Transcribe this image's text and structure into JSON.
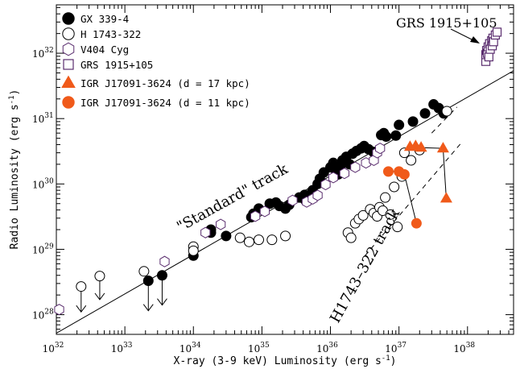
{
  "chart_data": {
    "type": "scatter",
    "xlabel": "X-ray (3-9 keV) Luminosity (erg s",
    "xlabel_sup": "-1",
    "xlabel_end": ")",
    "ylabel": "Radio Luminosity (erg s",
    "ylabel_sup": "-1",
    "ylabel_end": ")",
    "xscale": "log",
    "yscale": "log",
    "xlim": [
      1e+32,
      4.7e+38
    ],
    "ylim": [
      5e+27,
      5.5e+32
    ],
    "x_ticks": [
      {
        "value": 1e+32,
        "base": "10",
        "exp": "32"
      },
      {
        "value": 1e+33,
        "base": "10",
        "exp": "33"
      },
      {
        "value": 1e+34,
        "base": "10",
        "exp": "34"
      },
      {
        "value": 1e+35,
        "base": "10",
        "exp": "35"
      },
      {
        "value": 1e+36,
        "base": "10",
        "exp": "36"
      },
      {
        "value": 1e+37,
        "base": "10",
        "exp": "37"
      },
      {
        "value": 1e+38,
        "base": "10",
        "exp": "38"
      }
    ],
    "y_ticks": [
      {
        "value": 1e+28,
        "base": "10",
        "exp": "28"
      },
      {
        "value": 1e+29,
        "base": "10",
        "exp": "29"
      },
      {
        "value": 1e+30,
        "base": "10",
        "exp": "30"
      },
      {
        "value": 1e+31,
        "base": "10",
        "exp": "31"
      },
      {
        "value": 1e+32,
        "base": "10",
        "exp": "32"
      }
    ],
    "legend_position": "top-left",
    "colors": {
      "purple": "#5a2d6e",
      "orange": "#f05a1a",
      "black": "#000000"
    },
    "series": [
      {
        "name": "GX 339-4",
        "marker": "filled-circle",
        "color": "#000000",
        "points": [
          [
            2.2e+33,
            3.3e+28
          ],
          [
            3.5e+33,
            4e+28
          ],
          [
            1e+34,
            8e+28
          ],
          [
            1.8e+34,
            2e+29
          ],
          [
            1.8e+34,
            1.8e+29
          ],
          [
            3e+34,
            1.6e+29
          ],
          [
            7e+34,
            3.1e+29
          ],
          [
            7.5e+34,
            3.5e+29
          ],
          [
            9e+34,
            4.2e+29
          ],
          [
            1.3e+35,
            5e+29
          ],
          [
            1.6e+35,
            5.2e+29
          ],
          [
            1.8e+35,
            4.6e+29
          ],
          [
            2.2e+35,
            4.2e+29
          ],
          [
            2.5e+35,
            4.8e+29
          ],
          [
            3.5e+35,
            6.2e+29
          ],
          [
            4.2e+35,
            6.8e+29
          ],
          [
            4.2e+35,
            5.8e+29
          ],
          [
            5.5e+35,
            8e+29
          ],
          [
            6.5e+35,
            1e+30
          ],
          [
            7e+35,
            1.2e+30
          ],
          [
            8e+35,
            1.5e+30
          ],
          [
            1e+36,
            1.8e+30
          ],
          [
            1.1e+36,
            2.1e+30
          ],
          [
            1.2e+36,
            1.6e+30
          ],
          [
            1.3e+36,
            1.4e+30
          ],
          [
            1.4e+36,
            1.9e+30
          ],
          [
            1.5e+36,
            2.3e+30
          ],
          [
            1.7e+36,
            2.6e+30
          ],
          [
            1.9e+36,
            2e+30
          ],
          [
            2.1e+36,
            2.9e+30
          ],
          [
            2.4e+36,
            3.2e+30
          ],
          [
            2.8e+36,
            3.5e+30
          ],
          [
            3.1e+36,
            3.8e+30
          ],
          [
            3.6e+36,
            3.4e+30
          ],
          [
            4.2e+36,
            3.1e+30
          ],
          [
            5.5e+36,
            5.6e+30
          ],
          [
            6e+36,
            6e+30
          ],
          [
            6.5e+36,
            5.3e+30
          ],
          [
            9e+36,
            5.5e+30
          ],
          [
            1e+37,
            8e+30
          ],
          [
            1.6e+37,
            9e+30
          ],
          [
            2.4e+37,
            1.2e+31
          ],
          [
            3.2e+37,
            1.65e+31
          ],
          [
            3.8e+37,
            1.45e+31
          ],
          [
            4.5e+37,
            1.2e+31
          ]
        ]
      },
      {
        "name": "H 1743-322",
        "marker": "open-circle",
        "color": "#000000",
        "points": [
          [
            2.3e+32,
            2.7e+28
          ],
          [
            4.3e+32,
            3.9e+28
          ],
          [
            1.9e+33,
            4.6e+28
          ],
          [
            1e+34,
            1.1e+29
          ],
          [
            1e+34,
            9.5e+28
          ],
          [
            4.8e+34,
            1.5e+29
          ],
          [
            6.5e+34,
            1.3e+29
          ],
          [
            9e+34,
            1.4e+29
          ],
          [
            1.4e+35,
            1.4e+29
          ],
          [
            2.2e+35,
            1.6e+29
          ],
          [
            1.8e+36,
            1.8e+29
          ],
          [
            2e+36,
            1.5e+29
          ],
          [
            2.3e+36,
            2.5e+29
          ],
          [
            2.6e+36,
            2.9e+29
          ],
          [
            3e+36,
            3.3e+29
          ],
          [
            3.8e+36,
            4.1e+29
          ],
          [
            4.3e+36,
            3.6e+29
          ],
          [
            4.8e+36,
            3.2e+29
          ],
          [
            5.2e+36,
            4.4e+29
          ],
          [
            5.8e+36,
            3.9e+29
          ],
          [
            6.3e+36,
            6.2e+29
          ],
          [
            7.5e+36,
            3.4e+29
          ],
          [
            8.5e+36,
            9e+29
          ],
          [
            9.5e+36,
            2.2e+29
          ],
          [
            1.1e+37,
            1.3e+30
          ],
          [
            1.2e+37,
            3e+30
          ],
          [
            1.5e+37,
            2.3e+30
          ],
          [
            2e+37,
            3.3e+30
          ],
          [
            5e+37,
            1.3e+31
          ]
        ]
      },
      {
        "name": "V404 Cyg",
        "marker": "open-hexagon",
        "color": "#5a2d6e",
        "points": [
          [
            1.1e+32,
            1.2e+28
          ],
          [
            3.8e+33,
            6.5e+28
          ],
          [
            1.5e+34,
            1.8e+29
          ],
          [
            2.5e+34,
            2.4e+29
          ],
          [
            8e+34,
            3.2e+29
          ],
          [
            1.1e+35,
            3.8e+29
          ],
          [
            2.8e+35,
            5.6e+29
          ],
          [
            4.5e+35,
            5.3e+29
          ],
          [
            5.5e+35,
            5.9e+29
          ],
          [
            6.5e+35,
            6.7e+29
          ],
          [
            8.5e+35,
            9.8e+29
          ],
          [
            1.1e+36,
            1.25e+30
          ],
          [
            1.6e+36,
            1.45e+30
          ],
          [
            2.3e+36,
            1.8e+30
          ],
          [
            3.3e+36,
            2.1e+30
          ],
          [
            4.3e+36,
            2.3e+30
          ],
          [
            4.8e+36,
            3e+30
          ],
          [
            5.3e+36,
            3.5e+30
          ]
        ]
      },
      {
        "name": "GRS 1915+105",
        "marker": "open-square",
        "color": "#5a2d6e",
        "points": [
          [
            1.85e+38,
            7.5e+31
          ],
          [
            1.85e+38,
            9.5e+31
          ],
          [
            1.9e+38,
            1.1e+32
          ],
          [
            1.95e+38,
            1e+32
          ],
          [
            2e+38,
            1.25e+32
          ],
          [
            2.05e+38,
            8.8e+31
          ],
          [
            2.1e+38,
            1.4e+32
          ],
          [
            2.15e+38,
            1.15e+32
          ],
          [
            2.25e+38,
            1.55e+32
          ],
          [
            2.3e+38,
            1.3e+32
          ],
          [
            2.35e+38,
            1.7e+32
          ],
          [
            2.4e+38,
            1.5e+32
          ],
          [
            2.55e+38,
            1.9e+32
          ],
          [
            2.7e+38,
            2.1e+32
          ]
        ]
      },
      {
        "name": "IGR J17091-3624 (d = 17 kpc)",
        "marker": "filled-triangle",
        "color": "#f05a1a",
        "points": [
          [
            1.45e+37,
            3.7e+30
          ],
          [
            1.75e+37,
            3.8e+30
          ],
          [
            2.1e+37,
            3.6e+30
          ],
          [
            4.4e+37,
            3.5e+30
          ],
          [
            4.9e+37,
            6e+29
          ]
        ],
        "links": [
          [
            0,
            1
          ],
          [
            1,
            2
          ],
          [
            2,
            3
          ],
          [
            3,
            4
          ]
        ]
      },
      {
        "name": "IGR J17091-3624 (d = 11 kpc)",
        "marker": "filled-circle",
        "color": "#f05a1a",
        "points": [
          [
            7e+36,
            1.55e+30
          ],
          [
            1e+37,
            1.55e+30
          ],
          [
            1.2e+37,
            1.4e+30
          ],
          [
            1.8e+37,
            2.5e+29
          ]
        ],
        "links": [
          [
            0,
            1
          ],
          [
            1,
            2
          ],
          [
            2,
            3
          ]
        ]
      }
    ],
    "upper_limits": [
      {
        "marker": "open-circle",
        "point": [
          2.3e+32,
          2.7e+28
        ],
        "to": 1.1e+28
      },
      {
        "marker": "open-circle",
        "point": [
          4.3e+32,
          3.9e+28
        ],
        "to": 1.7e+28
      },
      {
        "marker": "filled-circle",
        "point": [
          2.2e+33,
          3.3e+28
        ],
        "to": 1.15e+28
      },
      {
        "marker": "filled-circle",
        "point": [
          3.5e+33,
          4e+28
        ],
        "to": 1.4e+28
      }
    ],
    "fit_lines": [
      {
        "style": "solid",
        "from": [
          1e+32,
          5.2e+27
        ],
        "to": [
          4.7e+38,
          5.4e+31
        ]
      },
      {
        "style": "dashed",
        "from": [
          3.2e+36,
          8e+28
        ],
        "to": [
          8.5e+37,
          4.5e+30
        ]
      },
      {
        "style": "dashed",
        "from": [
          3e+37,
          6e+30
        ],
        "to": [
          7e+37,
          1.5e+31
        ]
      }
    ],
    "annotations": {
      "standard_track": "\"Standard\" track",
      "h1743_track": "H1743–322 track",
      "grs_label": "GRS 1915+105"
    }
  }
}
